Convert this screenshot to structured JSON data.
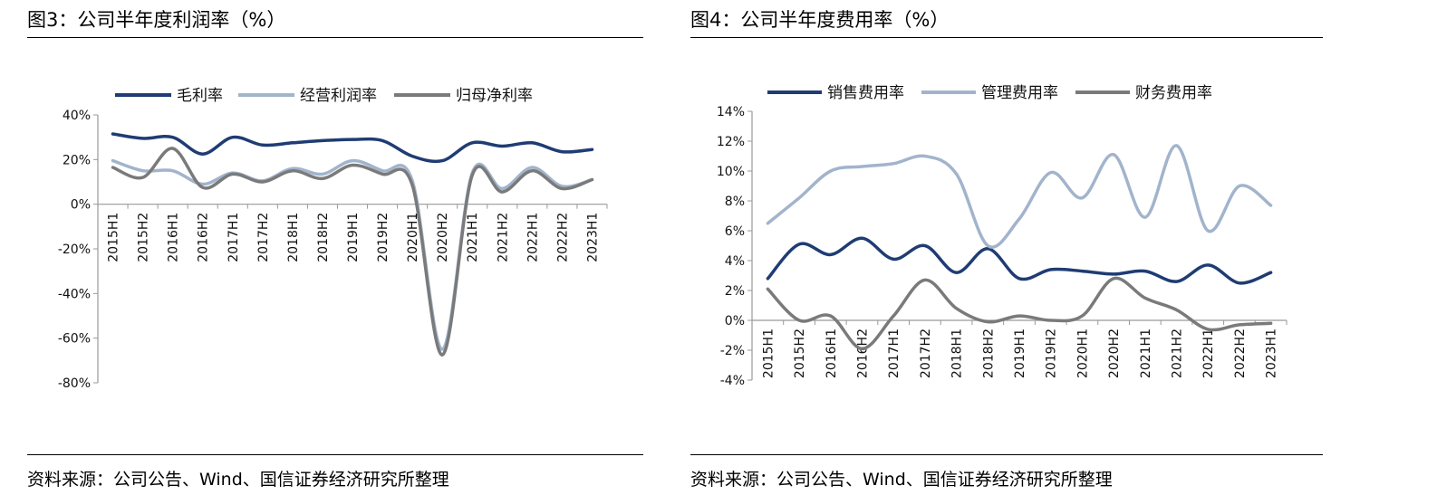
{
  "panels": [
    {
      "title": "图3：公司半年度利润率（%）",
      "source": "资料来源：公司公告、Wind、国信证券经济研究所整理"
    },
    {
      "title": "图4：公司半年度费用率（%）",
      "source": "资料来源：公司公告、Wind、国信证券经济研究所整理"
    }
  ],
  "chart_data": [
    {
      "type": "line",
      "title": "图3：公司半年度利润率（%）",
      "categories": [
        "2015H1",
        "2015H2",
        "2016H1",
        "2016H2",
        "2017H1",
        "2017H2",
        "2018H1",
        "2018H2",
        "2019H1",
        "2019H2",
        "2020H1",
        "2020H2",
        "2021H1",
        "2021H2",
        "2022H1",
        "2022H2",
        "2023H1"
      ],
      "series": [
        {
          "name": "毛利率",
          "color": "#1f3c73",
          "values": [
            31.5,
            29.5,
            30,
            22.5,
            30,
            26.5,
            27.5,
            28.5,
            29,
            28.5,
            21.5,
            19.5,
            27.5,
            26,
            27.5,
            23.5,
            24.5
          ]
        },
        {
          "name": "经营利润率",
          "color": "#a2b4cc",
          "values": [
            19.5,
            15,
            15,
            9,
            14,
            10.5,
            16,
            13.5,
            19.5,
            15,
            10.5,
            -65,
            14,
            7,
            16.5,
            8,
            11
          ]
        },
        {
          "name": "归母净利率",
          "color": "#7a7a7a",
          "values": [
            16.5,
            12,
            25,
            7.5,
            13.5,
            10,
            15,
            11.5,
            17.5,
            13.5,
            8.5,
            -67.5,
            13,
            5.5,
            15,
            7,
            11
          ]
        }
      ],
      "ylim": [
        -80,
        40
      ],
      "yticks": [
        "40%",
        "20%",
        "0%",
        "-20%",
        "-40%",
        "-60%",
        "-80%"
      ],
      "ytick_values": [
        40,
        20,
        0,
        -20,
        -40,
        -60,
        -80
      ],
      "legend": "top",
      "grid": false
    },
    {
      "type": "line",
      "title": "图4：公司半年度费用率（%）",
      "categories": [
        "2015H1",
        "2015H2",
        "2016H1",
        "2016H2",
        "2017H1",
        "2017H2",
        "2018H1",
        "2018H2",
        "2019H1",
        "2019H2",
        "2020H1",
        "2020H2",
        "2021H1",
        "2021H2",
        "2022H1",
        "2022H2",
        "2023H1"
      ],
      "series": [
        {
          "name": "销售费用率",
          "color": "#1f3c73",
          "values": [
            2.8,
            5.1,
            4.4,
            5.5,
            4.1,
            5,
            3.2,
            4.8,
            2.8,
            3.4,
            3.3,
            3.1,
            3.3,
            2.6,
            3.7,
            2.5,
            3.2
          ]
        },
        {
          "name": "管理费用率",
          "color": "#a2b4cc",
          "values": [
            6.5,
            8.2,
            10,
            10.3,
            10.5,
            11,
            9.8,
            5,
            6.8,
            9.9,
            8.2,
            11.1,
            6.9,
            11.7,
            6,
            9,
            7.7
          ]
        },
        {
          "name": "财务费用率",
          "color": "#7a7a7a",
          "values": [
            2.1,
            0,
            0.3,
            -1.9,
            0.3,
            2.7,
            0.8,
            -0.1,
            0.3,
            0,
            0.3,
            2.8,
            1.5,
            0.7,
            -0.6,
            -0.3,
            -0.2
          ]
        }
      ],
      "ylim": [
        -4,
        14
      ],
      "yticks": [
        "14%",
        "12%",
        "10%",
        "8%",
        "6%",
        "4%",
        "2%",
        "0%",
        "-2%",
        "-4%"
      ],
      "ytick_values": [
        14,
        12,
        10,
        8,
        6,
        4,
        2,
        0,
        -2,
        -4
      ],
      "legend": "top",
      "grid": false
    }
  ]
}
